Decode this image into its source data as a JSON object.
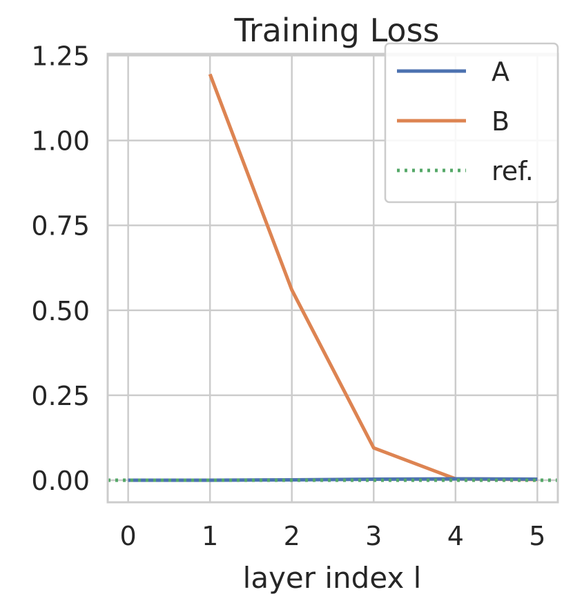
{
  "chart_data": {
    "type": "line",
    "title": "Training Loss",
    "xlabel": "layer index l",
    "ylabel": "",
    "xlim": [
      -0.25,
      5.25
    ],
    "ylim": [
      -0.065,
      1.255
    ],
    "xticks": [
      0,
      1,
      2,
      3,
      4,
      5
    ],
    "xtick_labels": [
      "0",
      "1",
      "2",
      "3",
      "4",
      "5"
    ],
    "yticks": [
      0,
      0.25,
      0.5,
      0.75,
      1.0,
      1.25
    ],
    "ytick_labels": [
      "0.00",
      "0.25",
      "0.50",
      "0.75",
      "1.00",
      "1.25"
    ],
    "grid": true,
    "legend_position": "top-right",
    "series": [
      {
        "name": "A",
        "color": "#4c72b0",
        "style": "solid",
        "x": [
          0,
          1,
          2,
          3,
          4,
          5
        ],
        "y": [
          0.0,
          0.0,
          0.001,
          0.003,
          0.004,
          0.003
        ]
      },
      {
        "name": "B",
        "color": "#dd8452",
        "style": "solid",
        "x": [
          1,
          2,
          3,
          4,
          5
        ],
        "y": [
          1.195,
          0.56,
          0.095,
          0.004,
          0.002
        ]
      },
      {
        "name": "ref.",
        "color": "#55a868",
        "style": "dotted",
        "x": [
          -0.25,
          5.25
        ],
        "y": [
          0.0,
          0.0
        ]
      }
    ]
  }
}
